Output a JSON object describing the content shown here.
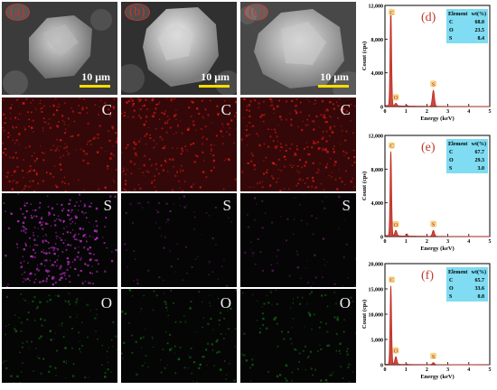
{
  "sem_panels": [
    {
      "label": "(a)",
      "scale": "10 μm"
    },
    {
      "label": "(b)",
      "scale": "10 μm"
    },
    {
      "label": "(c)",
      "scale": "10 μm"
    }
  ],
  "map_rows": [
    {
      "element": "C",
      "color": "#e01818"
    },
    {
      "element": "S",
      "color": "#c030c8"
    },
    {
      "element": "O",
      "color": "#20c020"
    }
  ],
  "colors": {
    "spectrum": "#c0281e",
    "table_bg": "#7fdcf2",
    "label": "#c0392b",
    "peak_label_bg": "#f5d58a"
  },
  "chart_data": [
    {
      "type": "line",
      "panel": "(d)",
      "xlabel": "Energy (keV)",
      "ylabel": "Count (cps)",
      "xlim": [
        0,
        5
      ],
      "ylim": [
        0,
        12000
      ],
      "xticks": [
        0,
        1,
        2,
        3,
        4,
        5
      ],
      "yticks": [
        "0",
        "4,000",
        "8,000",
        "12,000"
      ],
      "peaks": [
        {
          "label": "C",
          "energy": 0.28,
          "count": 11500
        },
        {
          "label": "O",
          "energy": 0.52,
          "count": 300
        },
        {
          "label": "S",
          "energy": 2.31,
          "count": 1900
        }
      ],
      "table": {
        "headers": [
          "Element",
          "wt(%)"
        ],
        "rows": [
          [
            "C",
            "68.0"
          ],
          [
            "O",
            "23.5"
          ],
          [
            "S",
            "8.4"
          ]
        ]
      }
    },
    {
      "type": "line",
      "panel": "(e)",
      "xlabel": "Energy (keV)",
      "ylabel": "Count (cps)",
      "xlim": [
        0,
        5
      ],
      "ylim": [
        0,
        12000
      ],
      "xticks": [
        0,
        1,
        2,
        3,
        4,
        5
      ],
      "yticks": [
        "0",
        "4,000",
        "8,000",
        "12,000"
      ],
      "peaks": [
        {
          "label": "C",
          "energy": 0.28,
          "count": 10000
        },
        {
          "label": "O",
          "energy": 0.52,
          "count": 650
        },
        {
          "label": "S",
          "energy": 2.31,
          "count": 700
        }
      ],
      "table": {
        "headers": [
          "Element",
          "wt(%)"
        ],
        "rows": [
          [
            "C",
            "67.7"
          ],
          [
            "O",
            "29.3"
          ],
          [
            "S",
            "3.0"
          ]
        ]
      }
    },
    {
      "type": "line",
      "panel": "(f)",
      "xlabel": "Energy (keV)",
      "ylabel": "Count (cps)",
      "xlim": [
        0,
        5
      ],
      "ylim": [
        0,
        20000
      ],
      "xticks": [
        0,
        1,
        2,
        3,
        4,
        5
      ],
      "yticks": [
        "0",
        "5,000",
        "10,000",
        "15,000",
        "20,000"
      ],
      "peaks": [
        {
          "label": "C",
          "energy": 0.28,
          "count": 15500
        },
        {
          "label": "O",
          "energy": 0.52,
          "count": 1500
        },
        {
          "label": "S",
          "energy": 2.31,
          "count": 400
        }
      ],
      "table": {
        "headers": [
          "Element",
          "wt(%)"
        ],
        "rows": [
          [
            "C",
            "65.7"
          ],
          [
            "O",
            "33.6"
          ],
          [
            "S",
            "0.8"
          ]
        ]
      }
    }
  ]
}
